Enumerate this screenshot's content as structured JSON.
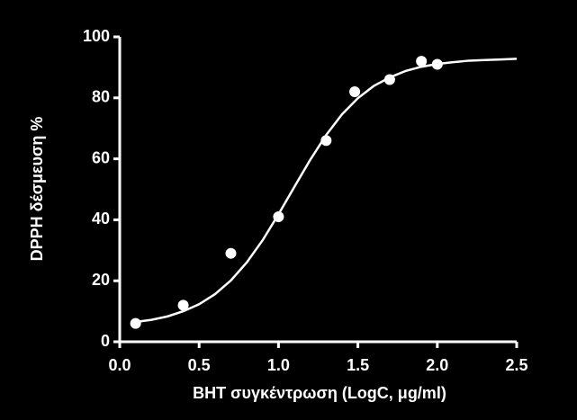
{
  "chart_data": {
    "type": "scatter",
    "xlabel": "BHT συγκέντρωση (LogC, μg/ml)",
    "ylabel": "DPPH δέσμευση %",
    "xlim": [
      0,
      2.5
    ],
    "ylim": [
      0,
      100
    ],
    "xticks": [
      {
        "value": 0,
        "label": "0.0"
      },
      {
        "value": 0.5,
        "label": "0.5"
      },
      {
        "value": 1,
        "label": "1.0"
      },
      {
        "value": 1.5,
        "label": "1.5"
      },
      {
        "value": 2,
        "label": "2.0"
      },
      {
        "value": 2.5,
        "label": "2.5"
      }
    ],
    "yticks": [
      0,
      20,
      40,
      60,
      80,
      100
    ],
    "grid": false,
    "series": [
      {
        "style": "markers",
        "color": "#ffffff",
        "x": [
          0.1,
          0.4,
          0.7,
          1.0,
          1.3,
          1.48,
          1.7,
          1.9,
          2.0
        ],
        "values": [
          6,
          12,
          29,
          41,
          66,
          82,
          86,
          92,
          91
        ]
      },
      {
        "style": "line",
        "color": "#ffffff",
        "x": [
          0.1,
          0.2,
          0.3,
          0.4,
          0.5,
          0.6,
          0.7,
          0.8,
          0.9,
          1.0,
          1.1,
          1.2,
          1.3,
          1.4,
          1.5,
          1.6,
          1.7,
          1.8,
          1.9,
          2.0,
          2.1,
          2.2,
          2.3,
          2.4,
          2.5
        ],
        "values": [
          6.5,
          7.2,
          8.3,
          10.0,
          12.3,
          15.6,
          20.1,
          26.0,
          33.3,
          41.8,
          50.8,
          59.7,
          67.8,
          74.6,
          79.9,
          83.9,
          86.7,
          88.8,
          90.2,
          91.1,
          91.7,
          92.2,
          92.4,
          92.6,
          92.8
        ]
      }
    ]
  }
}
